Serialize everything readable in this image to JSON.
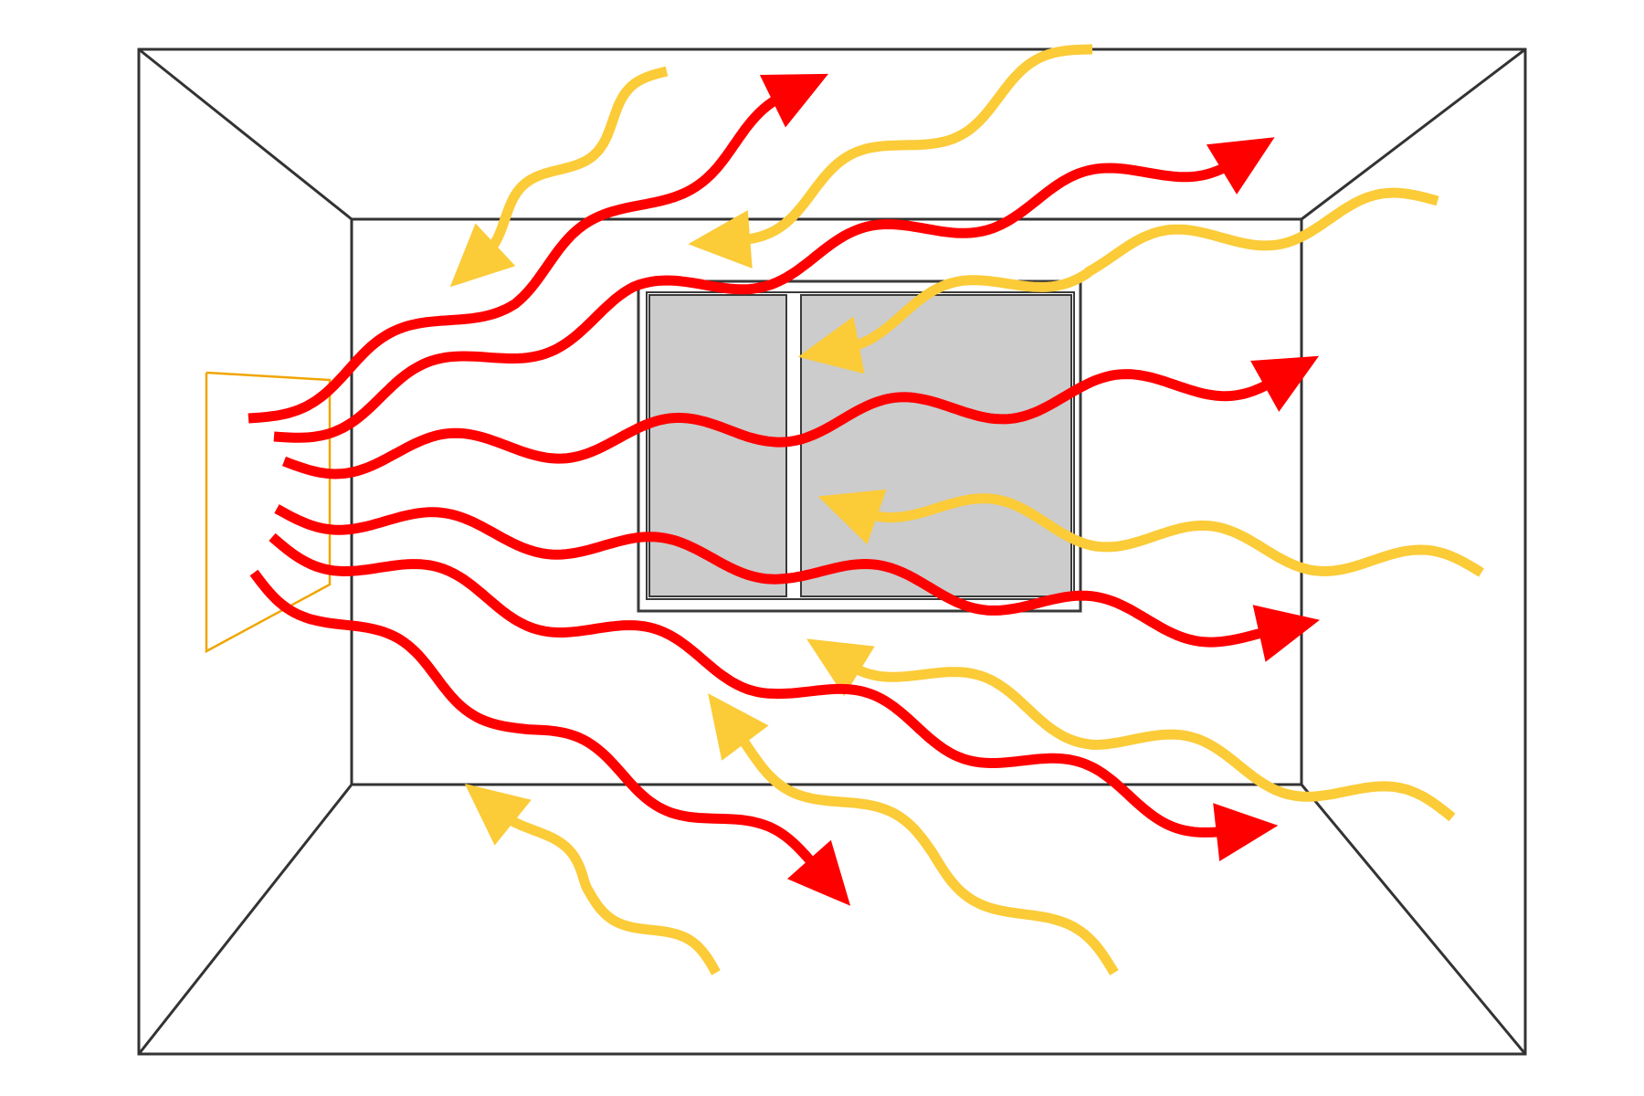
{
  "colors": {
    "background": "#ffffff",
    "room_lines": "#333333",
    "window_frame": "#3a3a3a",
    "window_glass": "#cccccc",
    "heater_outline": "#f0a500",
    "emitted_heat": "#ff0000",
    "reflected_heat": "#fbcb38"
  },
  "elements": {
    "room": "room-perspective-outline",
    "window": "window",
    "heater": "heater-panel",
    "emitted": "emitted-heat-wave",
    "reflected": "reflected-heat-wave"
  }
}
